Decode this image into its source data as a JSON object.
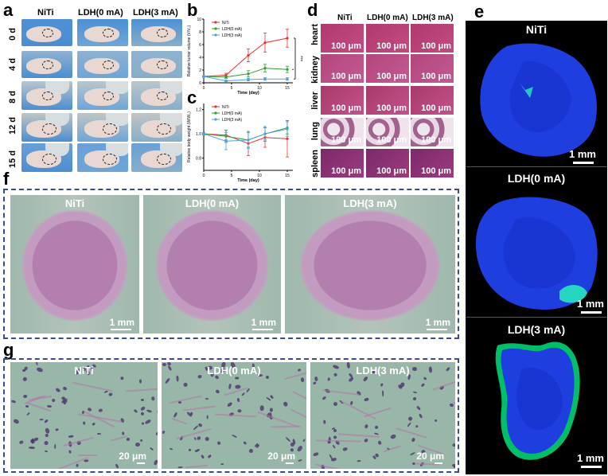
{
  "panels": {
    "a": {
      "label": "a",
      "columns": [
        "NiTi",
        "LDH(0 mA)",
        "LDH(3 mA)"
      ],
      "rows": [
        "0 d",
        "4 d",
        "8 d",
        "12 d",
        "15 d"
      ]
    },
    "b": {
      "label": "b"
    },
    "c": {
      "label": "c"
    },
    "d": {
      "label": "d",
      "columns": [
        "NiTi",
        "LDH(0 mA)",
        "LDH(3 mA)"
      ],
      "organs": [
        "heart",
        "kidney",
        "liver",
        "lung",
        "spleen"
      ],
      "scale": "100 μm"
    },
    "e": {
      "label": "e",
      "titles": [
        "NiTi",
        "LDH(0 mA)",
        "LDH(3 mA)"
      ],
      "scale": "1 mm"
    },
    "f": {
      "label": "f",
      "titles": [
        "NiTi",
        "LDH(0 mA)",
        "LDH(3 mA)"
      ],
      "scale": "1 mm"
    },
    "g": {
      "label": "g",
      "titles": [
        "NiTi",
        "LDH(0 mA)",
        "LDH(3 mA)"
      ],
      "scale": "20 μm"
    }
  },
  "colors": {
    "niti": "#e8322f",
    "ldh0": "#2e9e2e",
    "ldh3": "#4f9fe8",
    "he_pink": "#c98fb5",
    "dapi_blue": "#1f3ee0",
    "box_border": "#3a4a8a"
  },
  "chart_data": [
    {
      "type": "line",
      "ylabel": "Relative tumor volume (V/V₀)",
      "xlabel": "Time (day)",
      "x": [
        0,
        4,
        8,
        11,
        15
      ],
      "xticks": [
        0,
        5,
        10,
        15
      ],
      "yticks": [
        0,
        2,
        4,
        6,
        8,
        10
      ],
      "xlim": [
        0,
        16
      ],
      "ylim": [
        0,
        10
      ],
      "legend": "top-left",
      "annotation": "***",
      "series": [
        {
          "name": "NiTi",
          "color": "#e8322f",
          "values": [
            1,
            1.2,
            4.3,
            6.3,
            7.0
          ],
          "err": [
            0.1,
            0.3,
            1.0,
            1.5,
            1.4
          ]
        },
        {
          "name": "LDH(0 mA)",
          "color": "#2e9e2e",
          "values": [
            1,
            0.9,
            1.4,
            2.3,
            2.1
          ],
          "err": [
            0.1,
            0.2,
            0.5,
            0.6,
            0.5
          ]
        },
        {
          "name": "LDH(3 mA)",
          "color": "#4f9fe8",
          "values": [
            1,
            0.3,
            0.5,
            0.6,
            0.6
          ],
          "err": [
            0.1,
            0.1,
            0.2,
            0.2,
            0.2
          ]
        }
      ]
    },
    {
      "type": "line",
      "ylabel": "Relative body weight (W/W₀)",
      "xlabel": "Time (day)",
      "x": [
        0,
        4,
        8,
        11,
        15
      ],
      "xticks": [
        0,
        5,
        10,
        15
      ],
      "yticks": [
        0.8,
        1.0,
        1.2
      ],
      "xlim": [
        0,
        16
      ],
      "ylim": [
        0.7,
        1.25
      ],
      "legend": "top-left",
      "series": [
        {
          "name": "NiTi",
          "color": "#e8322f",
          "values": [
            1.0,
            0.99,
            0.92,
            0.97,
            0.96
          ],
          "err": [
            0.01,
            0.04,
            0.1,
            0.08,
            0.15
          ]
        },
        {
          "name": "LDH(0 mA)",
          "color": "#2e9e2e",
          "values": [
            1.0,
            0.98,
            0.95,
            1.0,
            1.05
          ],
          "err": [
            0.01,
            0.05,
            0.06,
            0.06,
            0.05
          ]
        },
        {
          "name": "LDH(3 mA)",
          "color": "#4f9fe8",
          "values": [
            1.0,
            0.94,
            0.95,
            1.0,
            1.04
          ],
          "err": [
            0.01,
            0.07,
            0.07,
            0.05,
            0.06
          ]
        }
      ]
    }
  ]
}
